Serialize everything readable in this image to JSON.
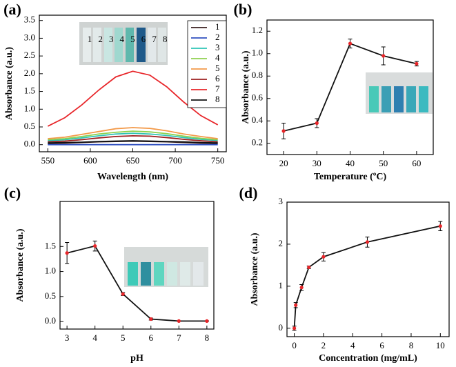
{
  "chart_data": [
    {
      "type": "line",
      "panel_label": "(a)",
      "x_label": "Wavelength (nm)",
      "y_label": "Absorbance (a.u.)",
      "x": [
        550,
        570,
        590,
        610,
        630,
        650,
        670,
        690,
        710,
        730,
        750
      ],
      "series": [
        {
          "name": "1",
          "color": "#3a1f1f",
          "values": [
            0.03,
            0.04,
            0.06,
            0.08,
            0.09,
            0.1,
            0.09,
            0.08,
            0.06,
            0.04,
            0.03
          ]
        },
        {
          "name": "2",
          "color": "#2f4fbf",
          "values": [
            0.0,
            0.0,
            0.0,
            0.0,
            0.0,
            0.0,
            0.0,
            0.0,
            0.0,
            0.0,
            0.0
          ]
        },
        {
          "name": "3",
          "color": "#2ec4b6",
          "values": [
            0.11,
            0.14,
            0.19,
            0.25,
            0.3,
            0.32,
            0.3,
            0.26,
            0.2,
            0.15,
            0.12
          ]
        },
        {
          "name": "4",
          "color": "#8fd14f",
          "values": [
            0.14,
            0.17,
            0.23,
            0.3,
            0.35,
            0.38,
            0.36,
            0.31,
            0.24,
            0.18,
            0.14
          ]
        },
        {
          "name": "5",
          "color": "#f39a4a",
          "values": [
            0.17,
            0.21,
            0.29,
            0.37,
            0.45,
            0.48,
            0.46,
            0.39,
            0.3,
            0.23,
            0.17
          ]
        },
        {
          "name": "6",
          "color": "#9c1f1f",
          "values": [
            0.08,
            0.1,
            0.14,
            0.19,
            0.23,
            0.25,
            0.24,
            0.2,
            0.15,
            0.11,
            0.08
          ]
        },
        {
          "name": "7",
          "color": "#e8262a",
          "values": [
            0.52,
            0.76,
            1.12,
            1.54,
            1.91,
            2.07,
            1.96,
            1.63,
            1.2,
            0.82,
            0.56
          ]
        },
        {
          "name": "8",
          "color": "#111111",
          "values": [
            0.05,
            0.06,
            0.07,
            0.09,
            0.1,
            0.11,
            0.1,
            0.09,
            0.08,
            0.06,
            0.05
          ]
        }
      ],
      "inset_labels": [
        "1",
        "2",
        "3",
        "4",
        "5",
        "6",
        "7",
        "8"
      ],
      "xlim": [
        540,
        760
      ],
      "xticks": [
        550,
        600,
        650,
        700,
        750
      ],
      "ylim": [
        -0.2,
        3.65
      ],
      "yticks": [
        {
          "value": 0,
          "label": "0.0"
        },
        0.5,
        {
          "value": 1,
          "label": "1.0"
        },
        1.5,
        {
          "value": 2,
          "label": "2.0"
        },
        2.5,
        {
          "value": 3,
          "label": "3.0"
        },
        3.5
      ]
    },
    {
      "type": "line",
      "panel_label": "(b)",
      "x_label": "Temperature (ºC)",
      "y_label": "Absorbance (a.u.)",
      "x": [
        20,
        30,
        40,
        50,
        60
      ],
      "values": [
        0.31,
        0.38,
        1.09,
        0.98,
        0.91
      ],
      "errors": [
        0.07,
        0.04,
        0.04,
        0.08,
        0.02
      ],
      "color": "#111111",
      "marker_color": "#e8262a",
      "xlim": [
        15,
        65
      ],
      "xticks": [
        20,
        30,
        40,
        50,
        60
      ],
      "ylim": [
        0.1,
        1.3
      ],
      "yticks": [
        0.2,
        0.4,
        0.6,
        0.8,
        {
          "value": 1,
          "label": "1.0"
        },
        1.2
      ]
    },
    {
      "type": "line",
      "panel_label": "(c)",
      "x_label": "pH",
      "y_label": "Absorbance (a.u.)",
      "x": [
        3,
        4,
        5,
        6,
        7,
        8
      ],
      "values": [
        1.37,
        1.51,
        0.55,
        0.05,
        0.01,
        0.01
      ],
      "errors": [
        0.21,
        0.1,
        0.03,
        0.02,
        0.005,
        0.005
      ],
      "color": "#111111",
      "marker_color": "#e8262a",
      "xlim": [
        2.75,
        8.25
      ],
      "xticks": [
        3,
        4,
        5,
        6,
        7,
        8
      ],
      "ylim": [
        -0.15,
        2.4
      ],
      "yticks": [
        {
          "value": 0,
          "label": "0.0"
        },
        0.5,
        {
          "value": 1,
          "label": "1.0"
        },
        1.5
      ]
    },
    {
      "type": "line",
      "panel_label": "(d)",
      "x_label": "Concentration (mg/mL)",
      "y_label": "Absorbance (a.u.)",
      "x": [
        0,
        0.1,
        0.5,
        1,
        2,
        5,
        10
      ],
      "values": [
        0.0,
        0.55,
        0.97,
        1.45,
        1.7,
        2.05,
        2.43
      ],
      "errors": [
        0.05,
        0.06,
        0.07,
        0.03,
        0.1,
        0.12,
        0.11
      ],
      "color": "#111111",
      "marker_color": "#e8262a",
      "xlim": [
        -0.5,
        10.6
      ],
      "xticks": [
        0,
        2,
        4,
        6,
        8,
        10
      ],
      "ylim": [
        -0.2,
        3
      ],
      "yticks": [
        0,
        1,
        2,
        3
      ]
    }
  ]
}
